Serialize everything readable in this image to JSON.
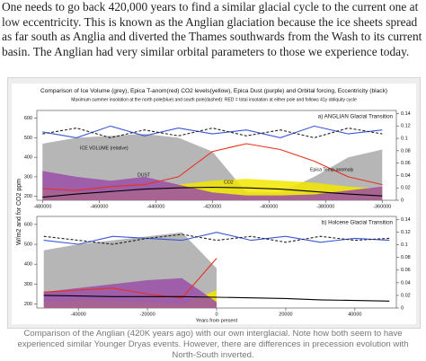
{
  "paragraph": "One needs to go back 420,000 years to find a similar glacial cycle to the current one at low eccentricity. This is known as the Anglian glaciation because the ice sheets spread as far south as Anglia and diverted the Thames southwards from the Wash to its current basin. The Anglian  had very similar orbital parameters to those we experience today.",
  "figure": {
    "title": "Comparison of Ice Volume (grey), Epica T-anom(red) CO2 levels(yellow), Epica Dust (purple) and Orbital forcing, Eccentricity (black)",
    "subtitle": "Maximum summer insolation at the north pole(blue) and south pole(dashed): RED = total insolation at either pole and follows 41y obliquity cycle",
    "y_label": "W/m2 and for CO2 ppm"
  },
  "chart_data": [
    {
      "type": "line",
      "title": "a) ANGLIAN Glacial Transition",
      "annotations": [
        "ICE VOLUME (relative)",
        "DUST",
        "CO2",
        "Epica Temp-anomaly"
      ],
      "x": [
        -480000,
        -468000,
        -456000,
        -444000,
        -432000,
        -420000,
        -408000,
        -396000,
        -384000,
        -372000,
        -360000
      ],
      "xlim": [
        -482000,
        -355000
      ],
      "xticks": [
        -480000,
        -460000,
        -440000,
        -420000,
        -400000,
        -380000,
        -360000
      ],
      "ylim": [
        180,
        640
      ],
      "yticks": [
        200,
        300,
        400,
        500,
        600
      ],
      "y2lim": [
        0,
        0.145
      ],
      "y2ticks": [
        0,
        0.02,
        0.04,
        0.06,
        0.08,
        0.1,
        0.12,
        0.14
      ],
      "series": [
        {
          "name": "Ice Volume",
          "style": "area",
          "color": "#a9a9a9",
          "values": [
            470,
            500,
            510,
            520,
            500,
            430,
            220,
            220,
            300,
            400,
            440
          ]
        },
        {
          "name": "CO2",
          "style": "area",
          "color": "#f2e600",
          "values": [
            230,
            220,
            225,
            230,
            260,
            280,
            290,
            280,
            270,
            250,
            240
          ]
        },
        {
          "name": "Dust",
          "style": "area",
          "color": "#9b4fa8",
          "values": [
            330,
            300,
            280,
            300,
            260,
            220,
            205,
            205,
            210,
            230,
            250
          ]
        },
        {
          "name": "Epica T-anom",
          "style": "line",
          "color": "#e8301c",
          "values": [
            240,
            230,
            250,
            260,
            300,
            430,
            470,
            440,
            380,
            300,
            260
          ]
        },
        {
          "name": "North insolation",
          "style": "line",
          "color": "#3a55d6",
          "values": [
            530,
            500,
            560,
            510,
            550,
            520,
            540,
            500,
            560,
            520,
            540
          ]
        },
        {
          "name": "South insolation",
          "style": "dashed",
          "color": "#222222",
          "values": [
            520,
            550,
            500,
            540,
            510,
            550,
            510,
            540,
            500,
            550,
            520
          ]
        },
        {
          "name": "Eccentricity",
          "style": "line",
          "axis": "y2",
          "color": "#000000",
          "values": [
            0.005,
            0.01,
            0.014,
            0.018,
            0.02,
            0.021,
            0.02,
            0.018,
            0.014,
            0.01,
            0.007
          ]
        }
      ]
    },
    {
      "type": "line",
      "title": "b) Holcene Glacial Transition",
      "xlabel": "Years from present",
      "x": [
        -50000,
        -40000,
        -30000,
        -20000,
        -10000,
        0,
        10000,
        20000,
        30000,
        40000,
        50000
      ],
      "xlim": [
        -52000,
        52000
      ],
      "xticks": [
        -40000,
        -20000,
        0,
        20000,
        40000
      ],
      "ylim": [
        180,
        640
      ],
      "yticks": [
        200,
        300,
        400,
        500,
        600
      ],
      "y2lim": [
        0,
        0.145
      ],
      "y2ticks": [
        0,
        0.02,
        0.04,
        0.06,
        0.08,
        0.1,
        0.12,
        0.14
      ],
      "series": [
        {
          "name": "Ice Volume",
          "style": "area",
          "color": "#a9a9a9",
          "values": [
            470,
            500,
            520,
            540,
            560,
            380,
            null,
            null,
            null,
            null,
            null
          ]
        },
        {
          "name": "CO2",
          "style": "area",
          "color": "#f2e600",
          "values": [
            210,
            220,
            215,
            210,
            200,
            270,
            null,
            null,
            null,
            null,
            null
          ]
        },
        {
          "name": "Dust",
          "style": "area",
          "color": "#9b4fa8",
          "values": [
            260,
            280,
            300,
            320,
            330,
            210,
            null,
            null,
            null,
            null,
            null
          ]
        },
        {
          "name": "Epica T-anom",
          "style": "line",
          "color": "#e8301c",
          "values": [
            260,
            270,
            280,
            250,
            230,
            430,
            null,
            null,
            null,
            null,
            null
          ]
        },
        {
          "name": "North insolation",
          "style": "line",
          "color": "#3a55d6",
          "values": [
            520,
            500,
            540,
            530,
            520,
            560,
            520,
            540,
            510,
            530,
            520
          ]
        },
        {
          "name": "South insolation",
          "style": "dashed",
          "color": "#222222",
          "values": [
            540,
            520,
            500,
            530,
            550,
            520,
            540,
            510,
            540,
            520,
            530
          ]
        },
        {
          "name": "Eccentricity",
          "style": "line",
          "axis": "y2",
          "color": "#000000",
          "values": [
            0.02,
            0.019,
            0.018,
            0.018,
            0.018,
            0.017,
            0.016,
            0.015,
            0.013,
            0.012,
            0.011
          ]
        }
      ]
    }
  ],
  "caption": "Comparison of the  Anglian (420K years ago) with our own  interglacial. Note how both seem to have experienced similar Younger Dryas events. However, there are differences in precession evolution with North-South inverted."
}
